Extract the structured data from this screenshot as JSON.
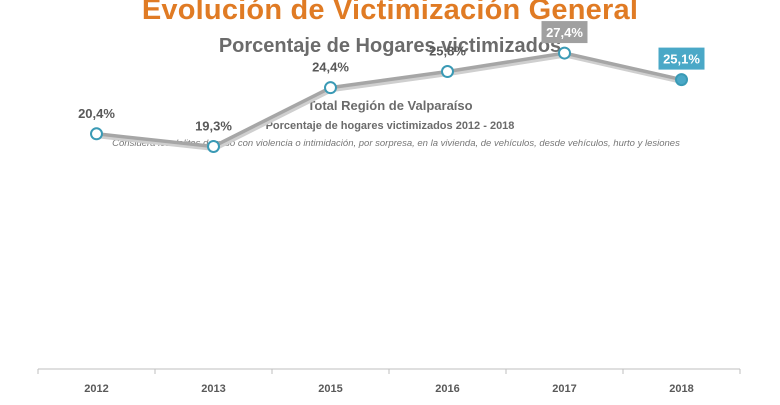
{
  "header": {
    "title": "Evolución de Victimización General",
    "subtitle": "Porcentaje de Hogares victimizados"
  },
  "chart_data": {
    "type": "line",
    "title": "Total Región de Valparaíso",
    "subtitle": "Porcentaje de hogares victimizados 2012 - 2018",
    "note": "Considera los delitos de robo con violencia o intimidación, por sorpresa, en la vivienda, de vehículos, desde vehículos, hurto y lesiones",
    "categories": [
      "2012",
      "2013",
      "2015",
      "2016",
      "2017",
      "2018"
    ],
    "series": [
      {
        "name": "Porcentaje de hogares victimizados",
        "values": [
          20.4,
          19.3,
          24.4,
          25.8,
          27.4,
          25.1
        ],
        "labels": [
          "20,4%",
          "19,3%",
          "24,4%",
          "25,8%",
          "27,4%",
          "25,1%"
        ]
      }
    ],
    "highlight": {
      "max_index": 4,
      "last_index": 5
    },
    "xlabel": "",
    "ylabel": "",
    "ylim": [
      0,
      30
    ],
    "grid": false,
    "colors": {
      "title": "#e07b24",
      "line": "#a6a6a6",
      "marker_stroke": "#3a9ab5",
      "marker_fill": "#ffffff",
      "last_marker": "#4aa8c7",
      "max_label_bg": "#a0a0a0",
      "last_label_bg": "#4aa8c7",
      "label_text": "#595959"
    }
  }
}
